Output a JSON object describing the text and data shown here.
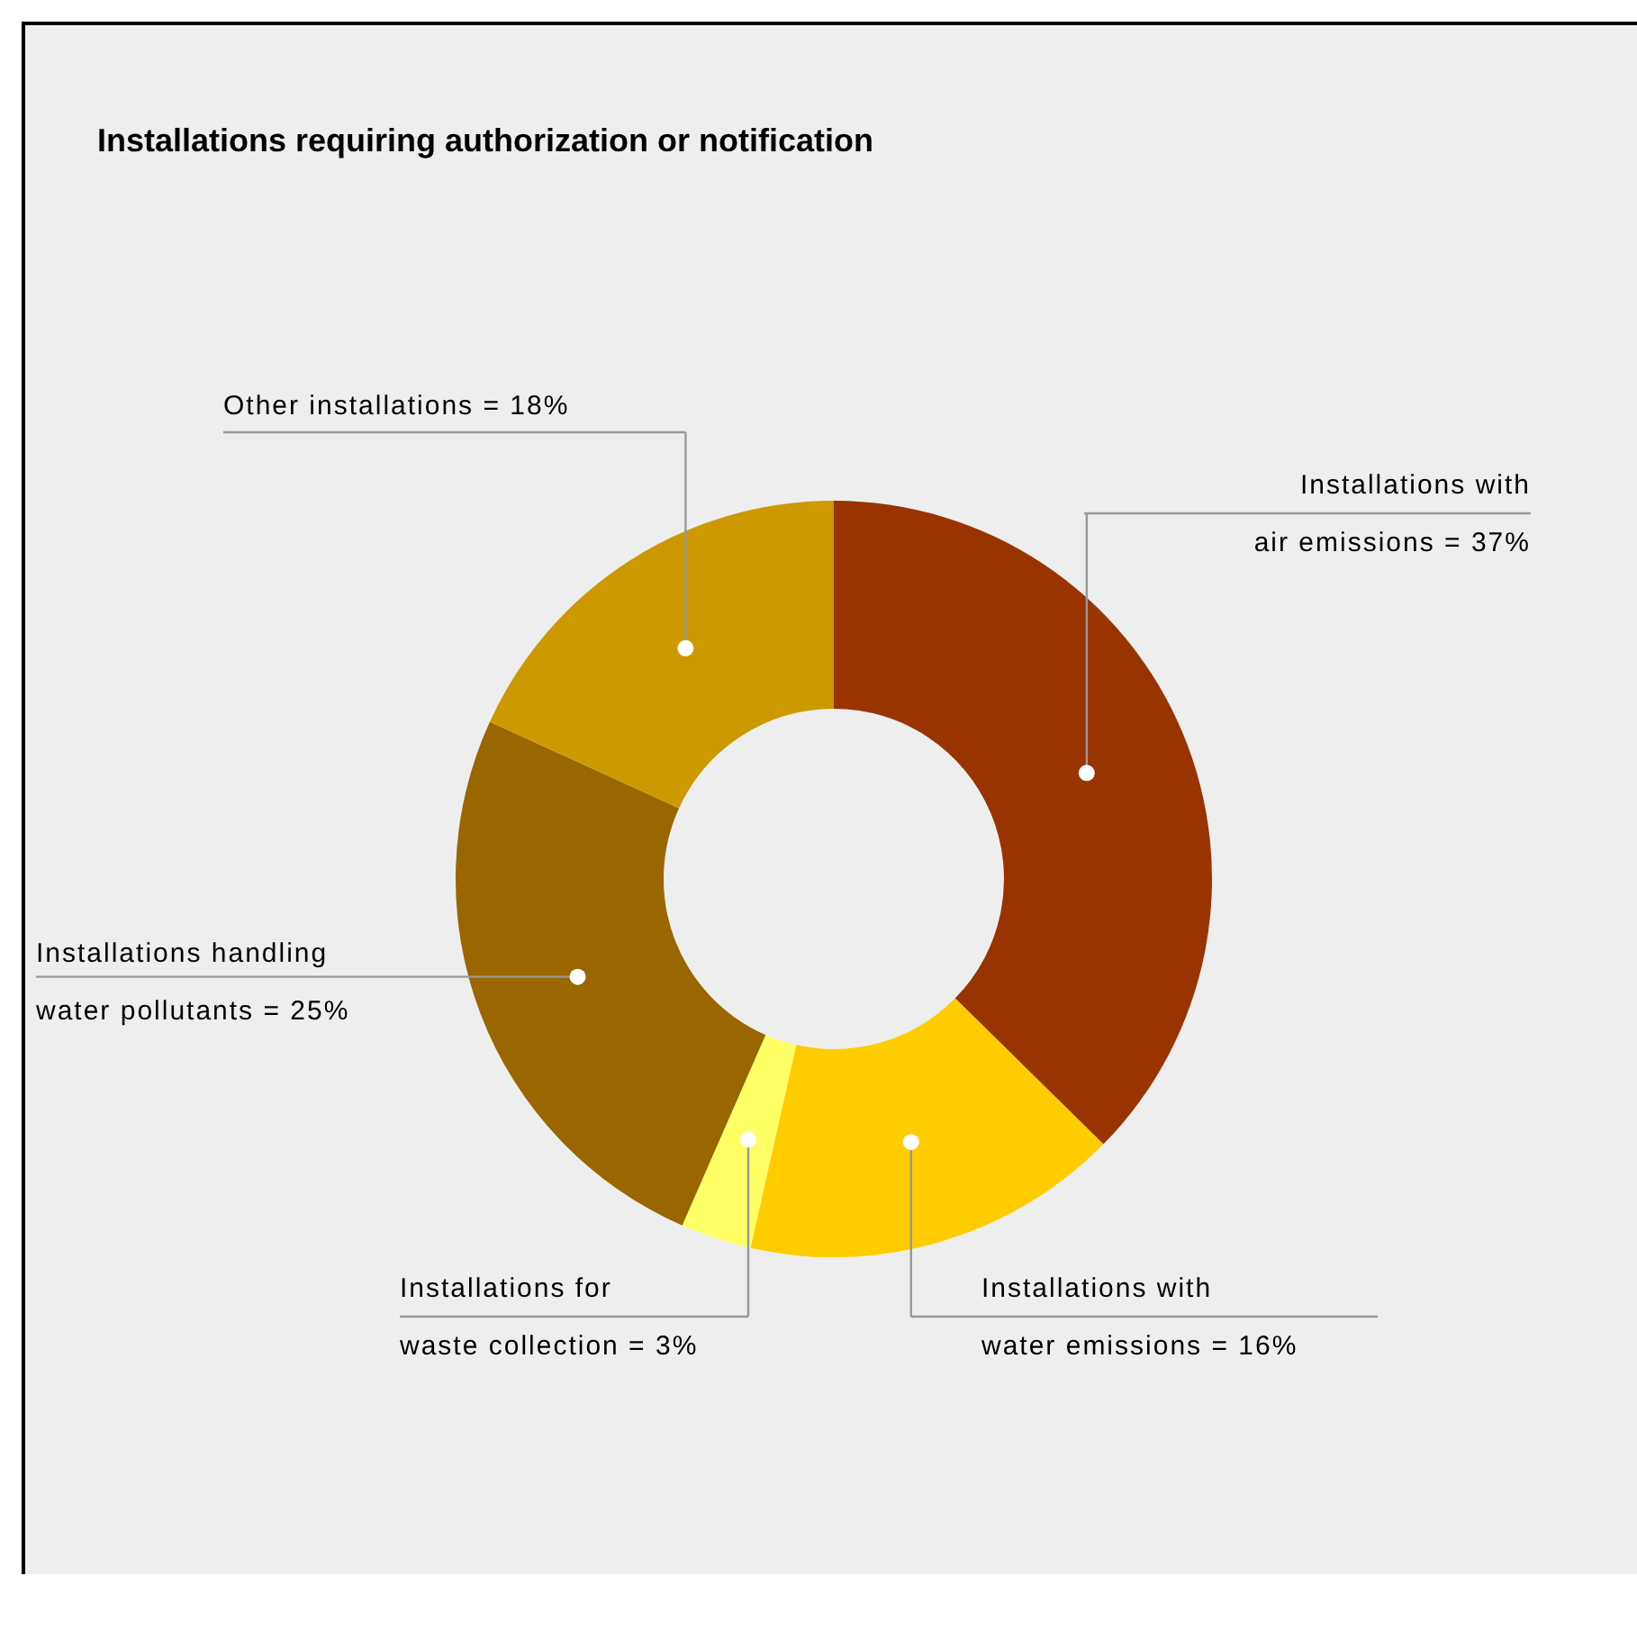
{
  "chart_data": {
    "type": "donut",
    "title": "Installations requiring authorization or notification",
    "categories": [
      "Installations with air emissions = 37%",
      "Installations with water emissions = 16%",
      "Installations for waste collection = 3%",
      "Installations handling water pollutants = 25%",
      "Other installations = 18%"
    ],
    "values": [
      37,
      16,
      3,
      25,
      18
    ],
    "colors": [
      "#993300",
      "#ffcc00",
      "#ffff66",
      "#996600",
      "#cc9900"
    ],
    "legend": false
  }
}
